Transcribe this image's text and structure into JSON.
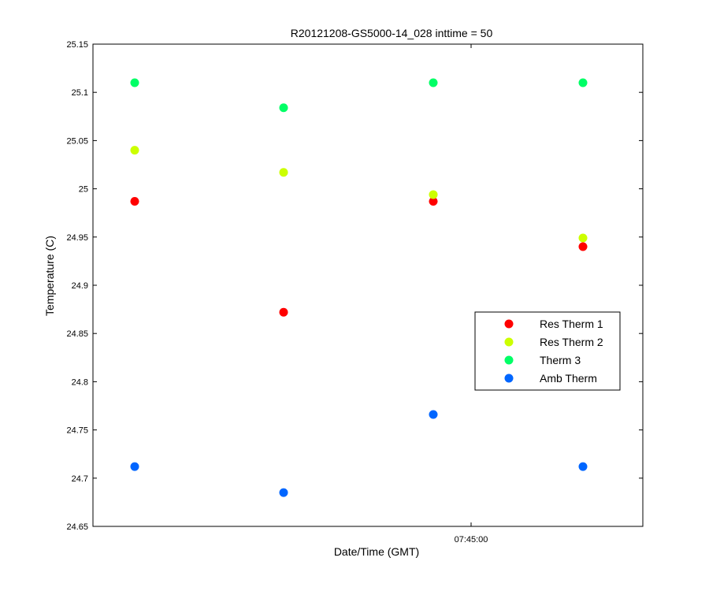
{
  "chart_data": {
    "type": "scatter",
    "title": "R20121208-GS5000-14_028 inttime = 50",
    "xlabel": "Date/Time (GMT)",
    "ylabel": "Temperature (C)",
    "ylim": [
      24.65,
      25.15
    ],
    "yticks": [
      "24.65",
      "24.7",
      "24.75",
      "24.8",
      "24.85",
      "24.9",
      "24.95",
      "25",
      "25.05",
      "25.1",
      "25.15"
    ],
    "xtick_labels": [
      "07:45:00"
    ],
    "x": [
      "t1",
      "t2",
      "t3",
      "t4"
    ],
    "series": [
      {
        "name": "Res Therm 1",
        "color": "#ff0000",
        "values": [
          24.987,
          24.872,
          24.987,
          24.94
        ]
      },
      {
        "name": "Res Therm 2",
        "color": "#ccff00",
        "values": [
          25.04,
          25.017,
          24.994,
          24.949
        ]
      },
      {
        "name": "Therm 3",
        "color": "#00ff66",
        "values": [
          25.11,
          25.084,
          25.11,
          25.11
        ]
      },
      {
        "name": "Amb Therm",
        "color": "#0066ff",
        "values": [
          24.712,
          24.685,
          24.766,
          24.712
        ]
      }
    ],
    "grid": false,
    "legend_position": "right"
  }
}
